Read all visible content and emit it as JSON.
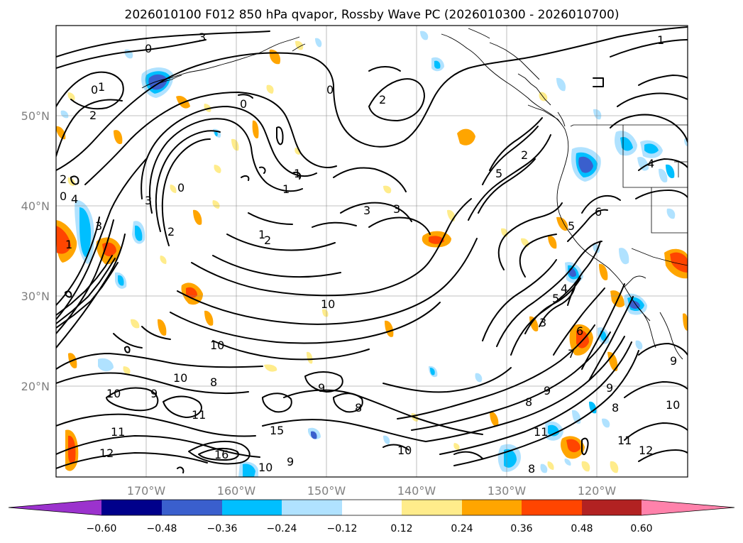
{
  "title": "2026010100 F012 850 hPa qvapor, Rossby Wave PC (2026010300 - 2026010700)",
  "lon_labels": [
    "170°W",
    "160°W",
    "150°W",
    "140°W",
    "130°W",
    "120°W"
  ],
  "lat_labels": [
    "50°N",
    "40°N",
    "30°N",
    "20°N"
  ],
  "colorbar": {
    "ticks": [
      "−0.60",
      "−0.48",
      "−0.36",
      "−0.24",
      "−0.12",
      "0.12",
      "0.24",
      "0.36",
      "0.48",
      "0.60"
    ],
    "colors": [
      "#9b32cd",
      "#00008b",
      "#3a5fcd",
      "#00bfff",
      "#b0e2ff",
      "#ffffff",
      "#ffec8b",
      "#ffa500",
      "#ff4500",
      "#b22222",
      "#ff82ab"
    ]
  },
  "contour_labels": [
    "3",
    "0",
    "0",
    "1",
    "2",
    "2",
    "1",
    "0",
    "4",
    "3",
    "2",
    "0",
    "0",
    "1",
    "2",
    "3",
    "3",
    "3",
    "1",
    "0",
    "1",
    "2",
    "2",
    "5",
    "6",
    "4",
    "3",
    "4",
    "5",
    "5",
    "6",
    "7",
    "8",
    "9",
    "10",
    "10",
    "8",
    "9",
    "10",
    "10",
    "11",
    "11",
    "12",
    "15",
    "16",
    "9",
    "8",
    "9",
    "10",
    "11",
    "12",
    "11",
    "8",
    "10",
    "9",
    "8",
    "9",
    "10",
    "1"
  ]
}
